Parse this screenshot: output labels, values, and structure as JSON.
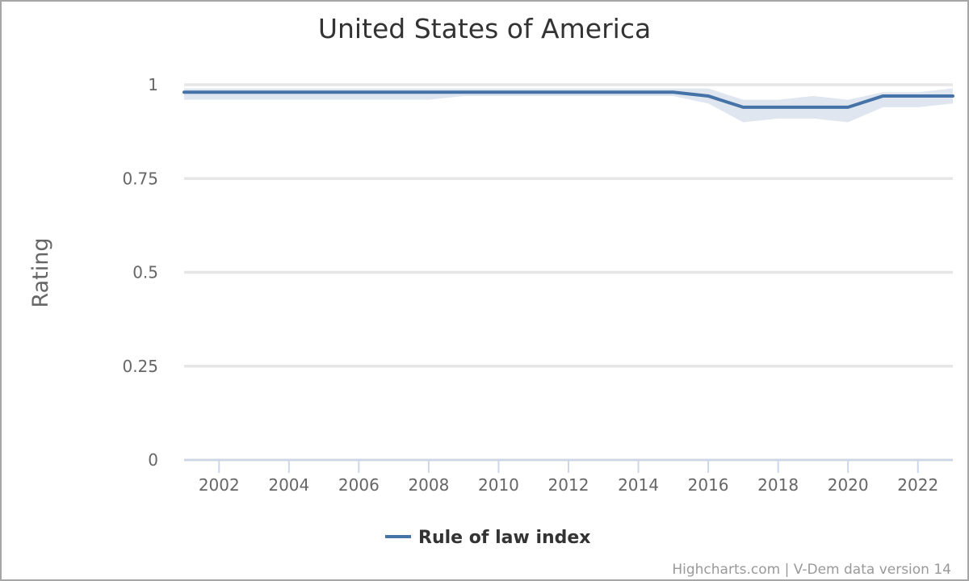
{
  "chart_data": {
    "type": "line",
    "title": "United States of America",
    "ylabel": "Rating",
    "xlabel": "",
    "xlim": [
      2001,
      2023
    ],
    "ylim": [
      0,
      1
    ],
    "yticks": [
      0,
      0.25,
      0.5,
      0.75,
      1
    ],
    "ytick_labels": [
      "0",
      "0.25",
      "0.5",
      "0.75",
      "1"
    ],
    "xticks": [
      2002,
      2004,
      2006,
      2008,
      2010,
      2012,
      2014,
      2016,
      2018,
      2020,
      2022
    ],
    "xtick_labels": [
      "2002",
      "2004",
      "2006",
      "2008",
      "2010",
      "2012",
      "2014",
      "2016",
      "2018",
      "2020",
      "2022"
    ],
    "grid": true,
    "legend_position": "bottom-center",
    "x": [
      2001,
      2002,
      2003,
      2004,
      2005,
      2006,
      2007,
      2008,
      2009,
      2010,
      2011,
      2012,
      2013,
      2014,
      2015,
      2016,
      2017,
      2018,
      2019,
      2020,
      2021,
      2022,
      2023
    ],
    "series": [
      {
        "name": "Rule of law index",
        "color": "#4572a7",
        "values": [
          0.98,
          0.98,
          0.98,
          0.98,
          0.98,
          0.98,
          0.98,
          0.98,
          0.98,
          0.98,
          0.98,
          0.98,
          0.98,
          0.98,
          0.98,
          0.97,
          0.94,
          0.94,
          0.94,
          0.94,
          0.97,
          0.97,
          0.97
        ],
        "lower": [
          0.96,
          0.96,
          0.96,
          0.96,
          0.96,
          0.96,
          0.96,
          0.96,
          0.97,
          0.97,
          0.97,
          0.97,
          0.97,
          0.97,
          0.97,
          0.95,
          0.9,
          0.91,
          0.91,
          0.9,
          0.94,
          0.94,
          0.95
        ],
        "upper": [
          0.99,
          0.99,
          0.99,
          0.99,
          0.99,
          0.99,
          0.99,
          0.99,
          0.99,
          0.99,
          0.99,
          0.99,
          0.99,
          0.99,
          0.99,
          0.99,
          0.96,
          0.96,
          0.97,
          0.96,
          0.98,
          0.98,
          0.99
        ],
        "band_color": "#dfe6f0"
      }
    ]
  },
  "credits": "Highcharts.com | V-Dem data version 14"
}
